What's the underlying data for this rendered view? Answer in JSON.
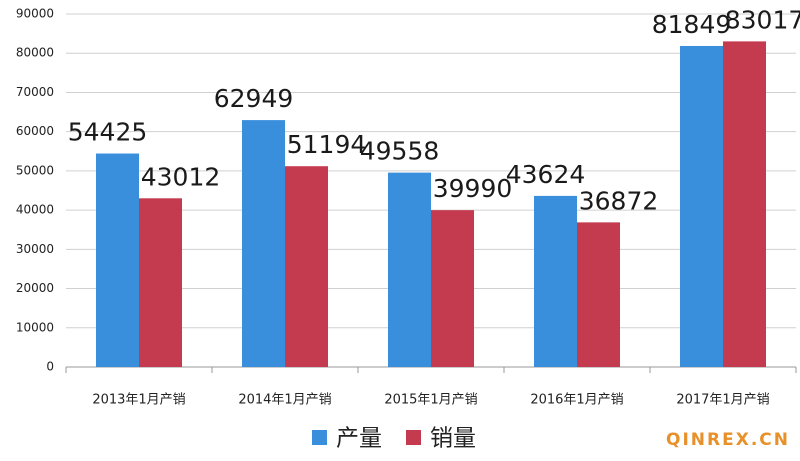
{
  "chart_data": {
    "type": "bar",
    "categories": [
      "2013年1月产销",
      "2014年1月产销",
      "2015年1月产销",
      "2016年1月产销",
      "2017年1月产销"
    ],
    "series": [
      {
        "name": "产量",
        "color": "#3a8fdc",
        "values": [
          54425,
          62949,
          49558,
          43624,
          81849
        ]
      },
      {
        "name": "销量",
        "color": "#c43a4e",
        "values": [
          43012,
          51194,
          39990,
          36872,
          83017
        ]
      }
    ],
    "ylim": [
      0,
      90000
    ],
    "yticks": [
      0,
      10000,
      20000,
      30000,
      40000,
      50000,
      60000,
      70000,
      80000,
      90000
    ],
    "grid": true,
    "legend": "bottom"
  },
  "watermark": "QINREX.CN"
}
